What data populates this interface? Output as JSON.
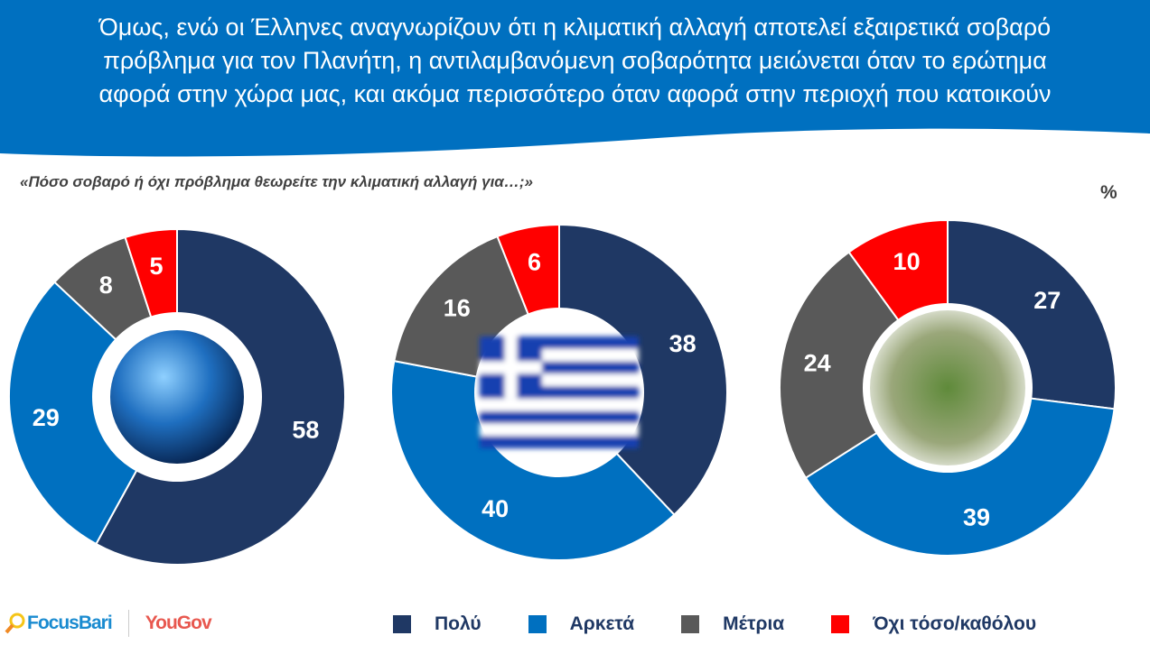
{
  "header": {
    "title_lines": [
      "Όμως, ενώ οι Έλληνες αναγνωρίζουν ότι η κλιματική αλλαγή αποτελεί εξαιρετικά σοβαρό",
      "πρόβλημα για τον Πλανήτη, η αντιλαμβανόμενη σοβαρότητα μειώνεται όταν το ερώτημα",
      "αφορά στην χώρα μας, και ακόμα περισσότερο όταν αφορά στην περιοχή που κατοικούν"
    ],
    "color": "#0070C0"
  },
  "question": "«Πόσο σοβαρό ή όχι πρόβλημα θεωρείτε την κλιματική αλλαγή για…;»",
  "unit": "%",
  "chart_data": [
    {
      "type": "pie",
      "variant": "donut",
      "center_image": "earth-globe",
      "categories": [
        "Πολύ",
        "Αρκετά",
        "Μέτρια",
        "Όχι τόσο/καθόλου"
      ],
      "values": [
        58,
        29,
        8,
        5
      ]
    },
    {
      "type": "pie",
      "variant": "donut",
      "center_image": "greek-flag",
      "categories": [
        "Πολύ",
        "Αρκετά",
        "Μέτρια",
        "Όχι τόσο/καθόλου"
      ],
      "values": [
        38,
        40,
        16,
        6
      ]
    },
    {
      "type": "pie",
      "variant": "donut",
      "center_image": "neighborhood-street",
      "categories": [
        "Πολύ",
        "Αρκετά",
        "Μέτρια",
        "Όχι τόσο/καθόλου"
      ],
      "values": [
        27,
        39,
        24,
        10
      ]
    }
  ],
  "legend": {
    "placement": "bottom",
    "items": [
      {
        "label": "Πολύ",
        "color": "#1F3864"
      },
      {
        "label": "Αρκετά",
        "color": "#0070C0"
      },
      {
        "label": "Μέτρια",
        "color": "#595959"
      },
      {
        "label": "Όχι τόσο/καθόλου",
        "color": "#FF0000"
      }
    ]
  },
  "logos": {
    "focusbari": "FocusBari",
    "yougov": "YouGov"
  }
}
